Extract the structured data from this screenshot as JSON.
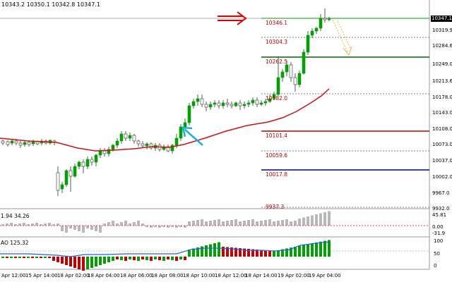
{
  "ohlc_header": "10343.2 10350.1 10342.8 10347.1",
  "ao_main_title": "1.94 34.26",
  "ao_bottom_title": "AO 125.32",
  "current_price_badge": "10347.1",
  "price_axis_ticks": [
    "10319.9",
    "10284.6",
    "10249.0",
    "10213.6",
    "10178.0",
    "10143.0",
    "10108.0",
    "10073.0",
    "10037.0",
    "10002.0",
    "9967.0",
    "9932.0"
  ],
  "mid_axis_ticks": [
    "45.81",
    "0.00",
    "-31.9"
  ],
  "bottom_axis_ticks": [
    "100",
    "50",
    "0"
  ],
  "time_axis_ticks": [
    "Apr 12:00",
    "15 Apr 14:00",
    "18 Apr 02:00",
    "18 Apr 04:00",
    "18 Apr 06:00",
    "18 Apr 08:00",
    "18 Apr 10:00",
    "18 Apr 12:00",
    "18 Apr 14:00",
    "19 Apr 02:00",
    "19 Apr 04:00"
  ],
  "levels": [
    {
      "label": "10346.1",
      "color": "#00a000"
    },
    {
      "label": "10304.3",
      "color": "#808080"
    },
    {
      "label": "10262.5",
      "color": "#006400"
    },
    {
      "label": "10182.0",
      "color": "#808080"
    },
    {
      "label": "10101.4",
      "color": "#c00000"
    },
    {
      "label": "10059.6",
      "color": "#808080"
    },
    {
      "label": "10017.8",
      "color": "#00008b"
    },
    {
      "label": "9937.3",
      "color": "#808080"
    }
  ],
  "colors": {
    "bull": "#00a000",
    "bear": "#c00000",
    "ma": "#cc1111",
    "ao_up": "#00a000",
    "ao_down": "#c00000",
    "arrow_red": "#e00000",
    "arrow_blue": "#1ab0e0",
    "arrow_orange": "#f0b040"
  }
}
